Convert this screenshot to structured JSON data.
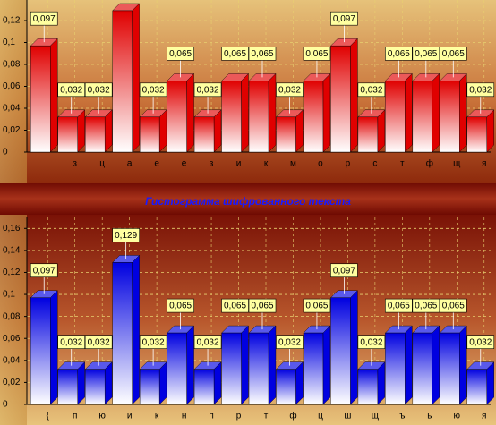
{
  "chart_data": [
    {
      "type": "bar3d",
      "categories": [
        null,
        "з",
        "ц",
        "а",
        "е",
        "е",
        "з",
        "и",
        "к",
        "м",
        "о",
        "р",
        "с",
        "т",
        "ф",
        "щ",
        "я"
      ],
      "values": [
        0.097,
        0.032,
        0.032,
        0.129,
        0.032,
        0.065,
        0.032,
        0.065,
        0.065,
        0.032,
        0.065,
        0.097,
        0.032,
        0.065,
        0.065,
        0.065,
        0.032
      ],
      "value_labels": [
        "0,097",
        "0,032",
        "0,032",
        null,
        "0,032",
        "0,065",
        "0,032",
        "0,065",
        "0,065",
        "0,032",
        "0,065",
        "0,097",
        "0,032",
        "0,065",
        "0,065",
        "0,065",
        "0,032"
      ],
      "color": "#e00000",
      "ylim": [
        0,
        0.14
      ],
      "yticks": [
        0,
        {
          "value": 0.02,
          "label": "0,02"
        },
        {
          "value": 0.04,
          "label": "0,04"
        },
        {
          "value": 0.06,
          "label": "0,06"
        },
        {
          "value": 0.08,
          "label": "0,08"
        },
        {
          "value": 0.1,
          "label": "0,1"
        },
        {
          "value": 0.12,
          "label": "0,12"
        }
      ],
      "grid": true
    },
    {
      "type": "bar3d",
      "title": "Гистограмма шифрованного текста",
      "categories": [
        "{",
        "п",
        "ю",
        "и",
        "к",
        "н",
        "п",
        "р",
        "т",
        "ф",
        "ц",
        "ш",
        "щ",
        "ъ",
        "ь",
        "ю",
        "я"
      ],
      "values": [
        0.097,
        0.032,
        0.032,
        0.129,
        0.032,
        0.065,
        0.032,
        0.065,
        0.065,
        0.032,
        0.065,
        0.097,
        0.032,
        0.065,
        0.065,
        0.065,
        0.032
      ],
      "value_labels": [
        "0,097",
        "0,032",
        "0,032",
        "0,129",
        "0,032",
        "0,065",
        "0,032",
        "0,065",
        "0,065",
        "0,032",
        "0,065",
        "0,097",
        "0,032",
        "0,065",
        "0,065",
        "0,065",
        "0,032"
      ],
      "color": "#0000e0",
      "ylim": [
        0,
        0.17
      ],
      "yticks": [
        0,
        {
          "value": 0.02,
          "label": "0,02"
        },
        {
          "value": 0.04,
          "label": "0,04"
        },
        {
          "value": 0.06,
          "label": "0,06"
        },
        {
          "value": 0.08,
          "label": "0,08"
        },
        {
          "value": 0.1,
          "label": "0,1"
        },
        {
          "value": 0.12,
          "label": "0,12"
        },
        {
          "value": 0.14,
          "label": "0,14"
        },
        {
          "value": 0.16,
          "label": "0,16"
        }
      ],
      "grid": true
    }
  ]
}
